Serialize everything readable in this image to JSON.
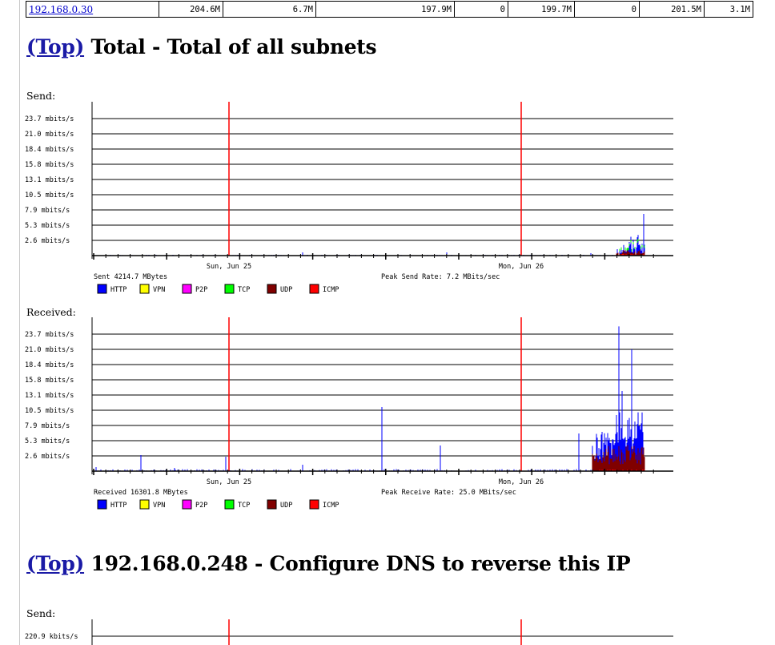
{
  "top_row": {
    "ip": "192.168.0.30",
    "cells": [
      "204.6M",
      "6.7M",
      "197.9M",
      "0",
      "199.7M",
      "0",
      "201.5M",
      "3.1M"
    ]
  },
  "sections": [
    {
      "top_link": "(Top)",
      "title": "Total - Total of all subnets",
      "send_label": "Send:",
      "received_label": "Received:"
    },
    {
      "top_link": "(Top)",
      "title": "192.168.0.248 - Configure DNS to reverse this IP",
      "send_label": "Send:"
    }
  ],
  "legend": [
    {
      "name": "HTTP",
      "color": "#0000ff"
    },
    {
      "name": "VPN",
      "color": "#ffff00"
    },
    {
      "name": "P2P",
      "color": "#ff00ff"
    },
    {
      "name": "TCP",
      "color": "#00ff00"
    },
    {
      "name": "UDP",
      "color": "#800000"
    },
    {
      "name": "ICMP",
      "color": "#ff0000"
    }
  ],
  "chart_data": [
    {
      "type": "area",
      "title": "Send:",
      "y_ticks": [
        "23.7 mbits/s",
        "21.0 mbits/s",
        "18.4 mbits/s",
        "15.8 mbits/s",
        "13.1 mbits/s",
        "10.5 mbits/s",
        "7.9 mbits/s",
        "5.3 mbits/s",
        "2.6 mbits/s"
      ],
      "y_unit": "mbits/s",
      "ylim": [
        0,
        26.3
      ],
      "day_markers": [
        "Sun, Jun 25",
        "Mon, Jun 26"
      ],
      "summary_left": "Sent 4214.7 MBytes",
      "summary_right": "Peak Send Rate: 7.2 MBits/sec",
      "peak_mbits": 7.2,
      "series": [
        "HTTP",
        "TCP",
        "UDP",
        "ICMP"
      ]
    },
    {
      "type": "area",
      "title": "Received:",
      "y_ticks": [
        "23.7 mbits/s",
        "21.0 mbits/s",
        "18.4 mbits/s",
        "15.8 mbits/s",
        "13.1 mbits/s",
        "10.5 mbits/s",
        "7.9 mbits/s",
        "5.3 mbits/s",
        "2.6 mbits/s"
      ],
      "y_unit": "mbits/s",
      "ylim": [
        0,
        26.3
      ],
      "day_markers": [
        "Sun, Jun 25",
        "Mon, Jun 26"
      ],
      "summary_left": "Received 16301.8 MBytes",
      "summary_right": "Peak Receive Rate: 25.0 MBits/sec",
      "peak_mbits": 25.0,
      "series": [
        "HTTP",
        "UDP",
        "ICMP"
      ]
    },
    {
      "type": "area",
      "title": "Send:",
      "y_ticks": [
        "220.9 kbits/s"
      ],
      "y_unit": "kbits/s",
      "day_markers": [],
      "series": []
    }
  ]
}
